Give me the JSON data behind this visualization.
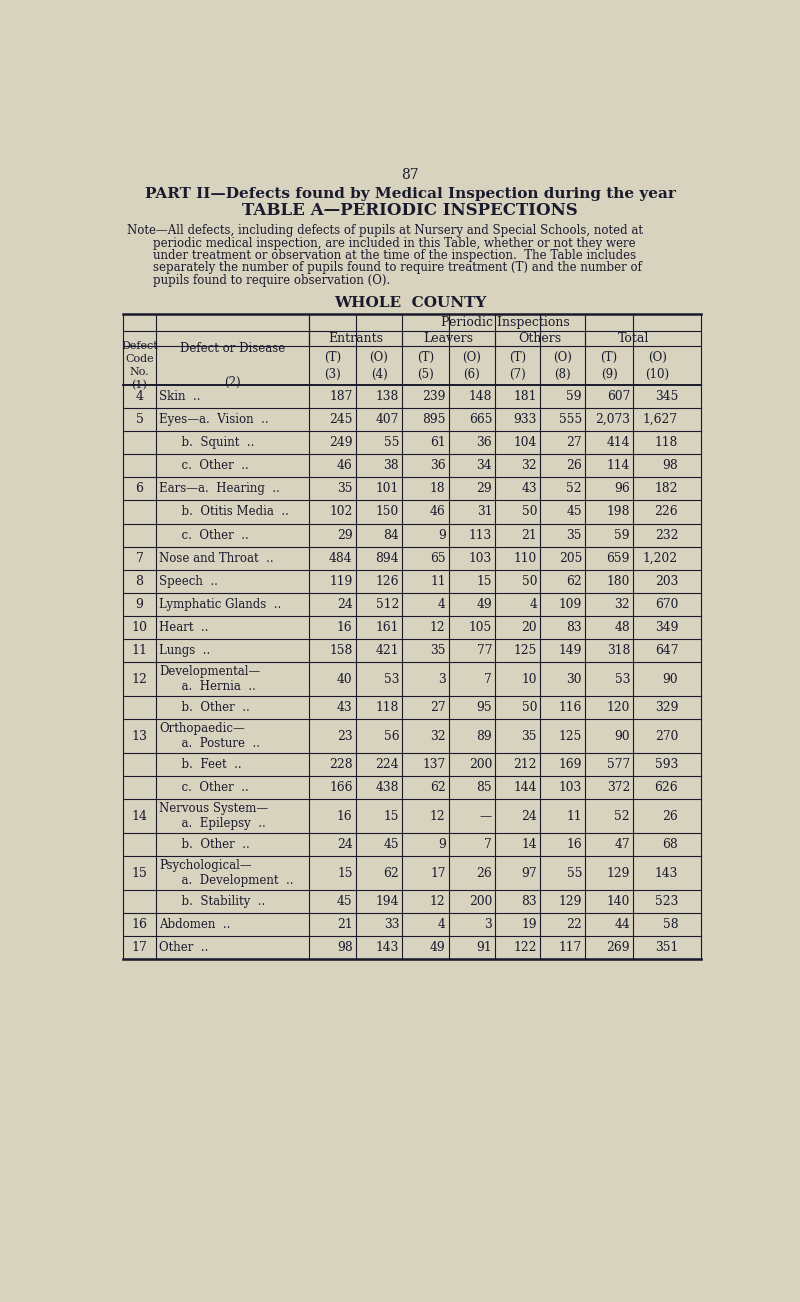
{
  "page_number": "87",
  "title1": "PART II—Defects found by Medical Inspection during the year",
  "title2": "TABLE A—PERIODIC INSPECTIONS",
  "note_lines": [
    "Note—All defects, including defects of pupils at Nursery and Special Schools, noted at",
    "periodic medical inspection, are included in this Table, whether or not they were",
    "under treatment or observation at the time of the inspection.  The Table includes",
    "separately the number of pupils found to require treatment (T) and the number of",
    "pupils found to require observation (O)."
  ],
  "subtitle": "WHOLE  COUNTY",
  "bg_color": "#d8d3be",
  "text_color": "#1a1a2e",
  "rows": [
    {
      "code": "4",
      "disease": "Skin  ..               ",
      "line2": null,
      "t1": "187",
      "o1": "138",
      "t2": "239",
      "o2": "148",
      "t3": "181",
      "o3": "59",
      "t4": "607",
      "o4": "345"
    },
    {
      "code": "5",
      "disease": "Eyes—a.  Vision  ..",
      "line2": null,
      "t1": "245",
      "o1": "407",
      "t2": "895",
      "o2": "665",
      "t3": "933",
      "o3": "555",
      "t4": "2,073",
      "o4": "1,627"
    },
    {
      "code": "",
      "disease": "      b.  Squint  ..",
      "line2": null,
      "t1": "249",
      "o1": "55",
      "t2": "61",
      "o2": "36",
      "t3": "104",
      "o3": "27",
      "t4": "414",
      "o4": "118"
    },
    {
      "code": "",
      "disease": "      c.  Other  ..",
      "line2": null,
      "t1": "46",
      "o1": "38",
      "t2": "36",
      "o2": "34",
      "t3": "32",
      "o3": "26",
      "t4": "114",
      "o4": "98"
    },
    {
      "code": "6",
      "disease": "Ears—a.  Hearing  ..",
      "line2": null,
      "t1": "35",
      "o1": "101",
      "t2": "18",
      "o2": "29",
      "t3": "43",
      "o3": "52",
      "t4": "96",
      "o4": "182"
    },
    {
      "code": "",
      "disease": "      b.  Otitis Media  ..",
      "line2": null,
      "t1": "102",
      "o1": "150",
      "t2": "46",
      "o2": "31",
      "t3": "50",
      "o3": "45",
      "t4": "198",
      "o4": "226"
    },
    {
      "code": "",
      "disease": "      c.  Other  ..",
      "line2": null,
      "t1": "29",
      "o1": "84",
      "t2": "9",
      "o2": "113",
      "t3": "21",
      "o3": "35",
      "t4": "59",
      "o4": "232"
    },
    {
      "code": "7",
      "disease": "Nose and Throat  ..",
      "line2": null,
      "t1": "484",
      "o1": "894",
      "t2": "65",
      "o2": "103",
      "t3": "110",
      "o3": "205",
      "t4": "659",
      "o4": "1,202"
    },
    {
      "code": "8",
      "disease": "Speech  ..",
      "line2": null,
      "t1": "119",
      "o1": "126",
      "t2": "11",
      "o2": "15",
      "t3": "50",
      "o3": "62",
      "t4": "180",
      "o4": "203"
    },
    {
      "code": "9",
      "disease": "Lymphatic Glands  ..",
      "line2": null,
      "t1": "24",
      "o1": "512",
      "t2": "4",
      "o2": "49",
      "t3": "4",
      "o3": "109",
      "t4": "32",
      "o4": "670"
    },
    {
      "code": "10",
      "disease": "Heart  ..",
      "line2": null,
      "t1": "16",
      "o1": "161",
      "t2": "12",
      "o2": "105",
      "t3": "20",
      "o3": "83",
      "t4": "48",
      "o4": "349"
    },
    {
      "code": "11",
      "disease": "Lungs  ..",
      "line2": null,
      "t1": "158",
      "o1": "421",
      "t2": "35",
      "o2": "77",
      "t3": "125",
      "o3": "149",
      "t4": "318",
      "o4": "647"
    },
    {
      "code": "12",
      "disease": "Developmental—",
      "line2": "      a.  Hernia  ..",
      "t1": "40",
      "o1": "53",
      "t2": "3",
      "o2": "7",
      "t3": "10",
      "o3": "30",
      "t4": "53",
      "o4": "90"
    },
    {
      "code": "",
      "disease": "      b.  Other  ..",
      "line2": null,
      "t1": "43",
      "o1": "118",
      "t2": "27",
      "o2": "95",
      "t3": "50",
      "o3": "116",
      "t4": "120",
      "o4": "329"
    },
    {
      "code": "13",
      "disease": "Orthopaedic—",
      "line2": "      a.  Posture  ..",
      "t1": "23",
      "o1": "56",
      "t2": "32",
      "o2": "89",
      "t3": "35",
      "o3": "125",
      "t4": "90",
      "o4": "270"
    },
    {
      "code": "",
      "disease": "      b.  Feet  ..",
      "line2": null,
      "t1": "228",
      "o1": "224",
      "t2": "137",
      "o2": "200",
      "t3": "212",
      "o3": "169",
      "t4": "577",
      "o4": "593"
    },
    {
      "code": "",
      "disease": "      c.  Other  ..",
      "line2": null,
      "t1": "166",
      "o1": "438",
      "t2": "62",
      "o2": "85",
      "t3": "144",
      "o3": "103",
      "t4": "372",
      "o4": "626"
    },
    {
      "code": "14",
      "disease": "Nervous System—",
      "line2": "      a.  Epilepsy  ..",
      "t1": "16",
      "o1": "15",
      "t2": "12",
      "o2": "—",
      "t3": "24",
      "o3": "11",
      "t4": "52",
      "o4": "26"
    },
    {
      "code": "",
      "disease": "      b.  Other  ..",
      "line2": null,
      "t1": "24",
      "o1": "45",
      "t2": "9",
      "o2": "7",
      "t3": "14",
      "o3": "16",
      "t4": "47",
      "o4": "68"
    },
    {
      "code": "15",
      "disease": "Psychological—",
      "line2": "      a.  Development  ..",
      "t1": "15",
      "o1": "62",
      "t2": "17",
      "o2": "26",
      "t3": "97",
      "o3": "55",
      "t4": "129",
      "o4": "143"
    },
    {
      "code": "",
      "disease": "      b.  Stability  ..",
      "line2": null,
      "t1": "45",
      "o1": "194",
      "t2": "12",
      "o2": "200",
      "t3": "83",
      "o3": "129",
      "t4": "140",
      "o4": "523"
    },
    {
      "code": "16",
      "disease": "Abdomen  ..",
      "line2": null,
      "t1": "21",
      "o1": "33",
      "t2": "4",
      "o2": "3",
      "t3": "19",
      "o3": "22",
      "t4": "44",
      "o4": "58"
    },
    {
      "code": "17",
      "disease": "Other  ..",
      "line2": null,
      "t1": "98",
      "o1": "143",
      "t2": "49",
      "o2": "91",
      "t3": "122",
      "o3": "117",
      "t4": "269",
      "o4": "351"
    }
  ]
}
